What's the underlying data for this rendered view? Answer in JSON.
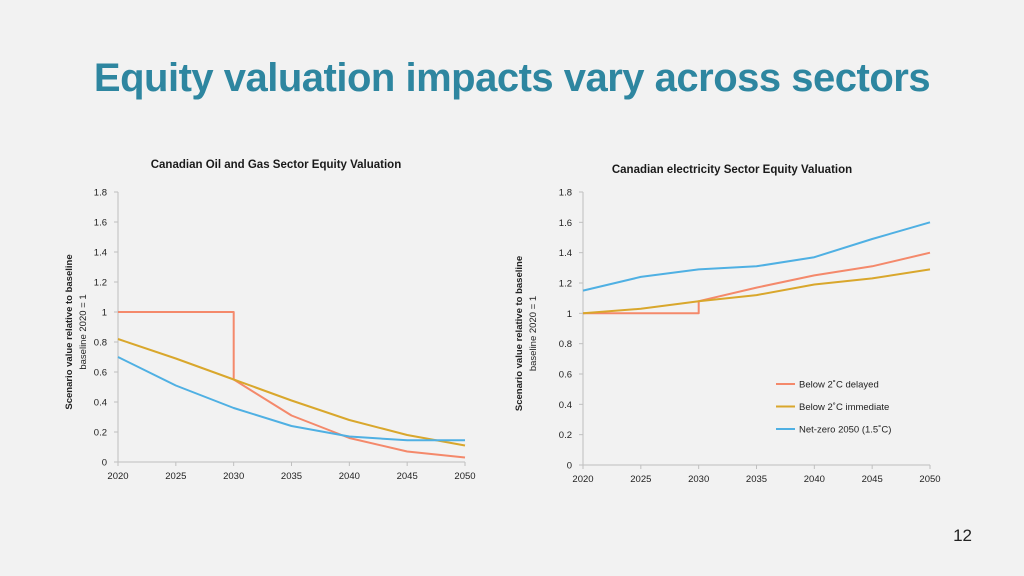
{
  "slide": {
    "title": "Equity valuation impacts vary across sectors",
    "page_number": "12"
  },
  "chart_data": [
    {
      "type": "line",
      "title": "Canadian Oil and Gas Sector Equity Valuation",
      "ylabel": "Scenario value relative to baseline",
      "ylabel_sub": "baseline 2020 = 1",
      "xlim": [
        2020,
        2050
      ],
      "ylim": [
        0,
        1.8
      ],
      "x_ticks": [
        "2020",
        "2025",
        "2030",
        "2035",
        "2040",
        "2045",
        "2050"
      ],
      "y_ticks": [
        "0",
        "0.2",
        "0.4",
        "0.6",
        "0.8",
        "1",
        "1.2",
        "1.4",
        "1.6",
        "1.8"
      ],
      "series": [
        {
          "name": "Below 2˚C delayed",
          "color": "#f4896b",
          "points": [
            [
              2020,
              1.0
            ],
            [
              2030,
              1.0
            ],
            [
              2030,
              0.55
            ],
            [
              2035,
              0.31
            ],
            [
              2040,
              0.16
            ],
            [
              2045,
              0.07
            ],
            [
              2050,
              0.03
            ]
          ]
        },
        {
          "name": "Below 2˚C immediate",
          "color": "#d9a72c",
          "points": [
            [
              2020,
              0.82
            ],
            [
              2025,
              0.69
            ],
            [
              2030,
              0.55
            ],
            [
              2035,
              0.41
            ],
            [
              2040,
              0.28
            ],
            [
              2045,
              0.18
            ],
            [
              2050,
              0.11
            ]
          ]
        },
        {
          "name": "Net-zero 2050 (1.5˚C)",
          "color": "#4fb0e3",
          "points": [
            [
              2020,
              0.7
            ],
            [
              2025,
              0.51
            ],
            [
              2030,
              0.36
            ],
            [
              2035,
              0.24
            ],
            [
              2040,
              0.17
            ],
            [
              2045,
              0.145
            ],
            [
              2050,
              0.145
            ]
          ]
        }
      ]
    },
    {
      "type": "line",
      "title": "Canadian electricity Sector Equity Valuation",
      "ylabel": "Scenario value relative to baseline",
      "ylabel_sub": "baseline 2020 = 1",
      "xlim": [
        2020,
        2050
      ],
      "ylim": [
        0,
        1.8
      ],
      "x_ticks": [
        "2020",
        "2025",
        "2030",
        "2035",
        "2040",
        "2045",
        "2050"
      ],
      "y_ticks": [
        "0",
        "0.2",
        "0.4",
        "0.6",
        "0.8",
        "1",
        "1.2",
        "1.4",
        "1.6",
        "1.8"
      ],
      "legend": [
        "Below 2˚C delayed",
        "Below 2˚C immediate",
        "Net-zero 2050 (1.5˚C)"
      ],
      "series": [
        {
          "name": "Below 2˚C delayed",
          "color": "#f4896b",
          "points": [
            [
              2020,
              1.0
            ],
            [
              2030,
              1.0
            ],
            [
              2030,
              1.08
            ],
            [
              2035,
              1.17
            ],
            [
              2040,
              1.25
            ],
            [
              2045,
              1.31
            ],
            [
              2050,
              1.4
            ]
          ]
        },
        {
          "name": "Below 2˚C immediate",
          "color": "#d9a72c",
          "points": [
            [
              2020,
              1.0
            ],
            [
              2025,
              1.03
            ],
            [
              2030,
              1.08
            ],
            [
              2035,
              1.12
            ],
            [
              2040,
              1.19
            ],
            [
              2045,
              1.23
            ],
            [
              2050,
              1.29
            ]
          ]
        },
        {
          "name": "Net-zero 2050 (1.5˚C)",
          "color": "#4fb0e3",
          "points": [
            [
              2020,
              1.15
            ],
            [
              2025,
              1.24
            ],
            [
              2030,
              1.29
            ],
            [
              2035,
              1.31
            ],
            [
              2040,
              1.37
            ],
            [
              2045,
              1.49
            ],
            [
              2050,
              1.6
            ]
          ]
        }
      ]
    }
  ]
}
